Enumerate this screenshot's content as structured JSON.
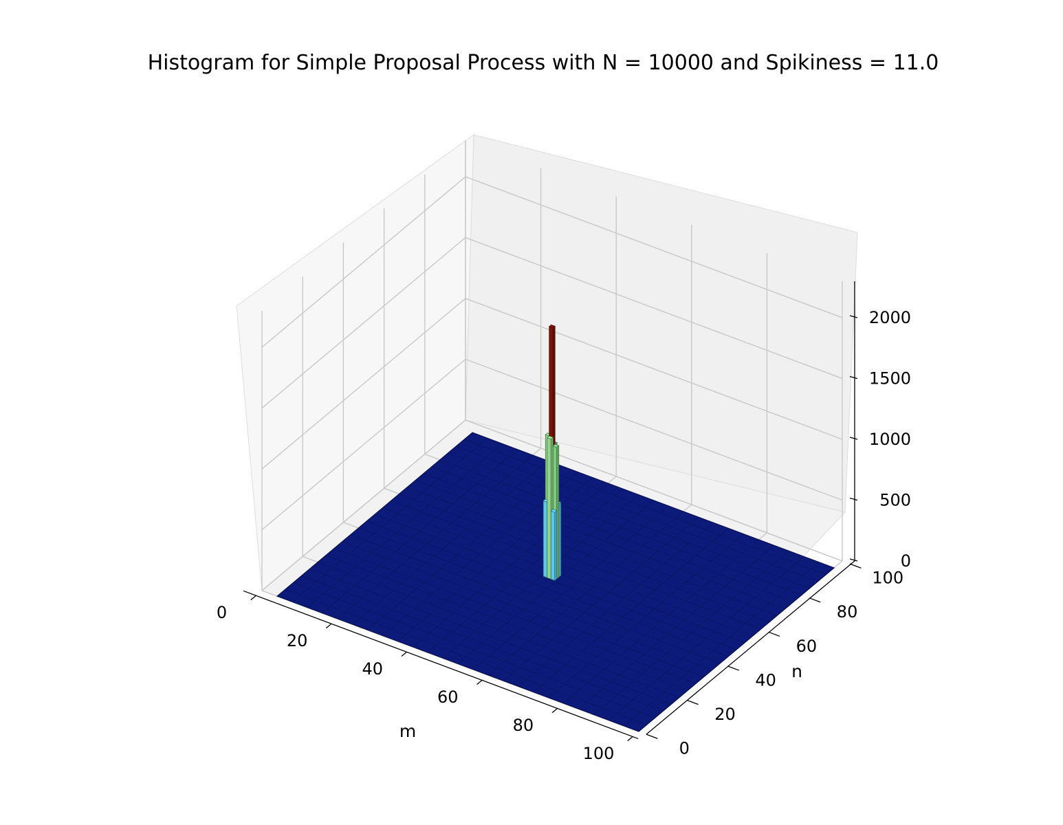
{
  "chart_data": {
    "type": "bar3d",
    "title": "Histogram for Simple Proposal Process with N = 10000 and Spikiness = 11.0",
    "xlabel": "m",
    "ylabel": "n",
    "zlabel": "",
    "xlim": [
      0,
      100
    ],
    "ylim": [
      0,
      100
    ],
    "zlim": [
      0,
      2300
    ],
    "xticks": [
      "0",
      "20",
      "40",
      "60",
      "80",
      "100"
    ],
    "yticks": [
      "0",
      "20",
      "40",
      "60",
      "80",
      "100"
    ],
    "zticks": [
      "0",
      "500",
      "1000",
      "1500",
      "2000"
    ],
    "grid": true,
    "floor_color": "#0c1a7a",
    "colormap": "jet",
    "bars": [
      {
        "m": 50,
        "n": 50,
        "count": 2050,
        "color": "#7a1408"
      },
      {
        "m": 49,
        "n": 50,
        "count": 1150,
        "color": "#8fd68a"
      },
      {
        "m": 50,
        "n": 49,
        "count": 1150,
        "color": "#8fd68a"
      },
      {
        "m": 51,
        "n": 50,
        "count": 1080,
        "color": "#7ccc80"
      },
      {
        "m": 50,
        "n": 51,
        "count": 1080,
        "color": "#7ccc80"
      },
      {
        "m": 49,
        "n": 49,
        "count": 620,
        "color": "#5cc8e8"
      },
      {
        "m": 51,
        "n": 51,
        "count": 600,
        "color": "#5cc8e8"
      },
      {
        "m": 49,
        "n": 51,
        "count": 560,
        "color": "#5cc8e8"
      },
      {
        "m": 51,
        "n": 49,
        "count": 560,
        "color": "#5cc8e8"
      }
    ]
  }
}
